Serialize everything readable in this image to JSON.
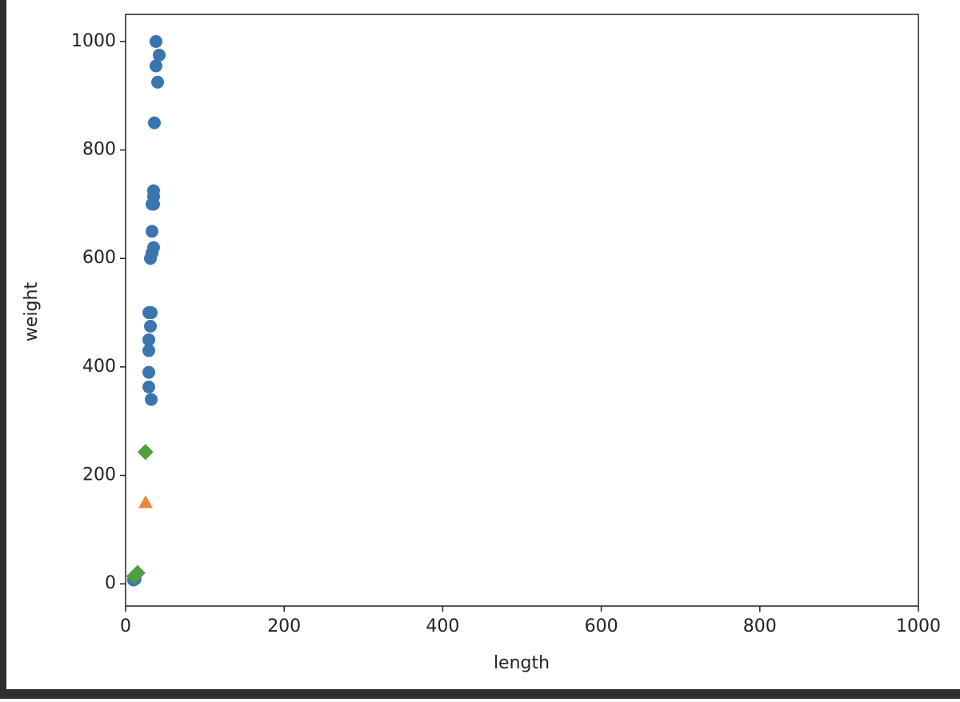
{
  "chart_data": {
    "type": "scatter",
    "x_label": "length",
    "y_label": "weight",
    "xlim": [
      0,
      1000
    ],
    "ylim": [
      -41,
      1050
    ],
    "xticks": [
      0,
      200,
      400,
      600,
      800,
      1000
    ],
    "yticks": [
      0,
      200,
      400,
      600,
      800,
      1000
    ],
    "series": [
      {
        "color": "#3a75b0",
        "marker": "circle",
        "x": [
          38.3,
          42.4,
          38.3,
          40.4,
          36.3,
          35.3,
          35.3,
          35.3,
          33.3,
          33.3,
          35.3,
          33.3,
          31.3,
          32.3,
          29.3,
          31.3,
          29.3,
          29.3,
          29.3,
          29.3,
          32.3,
          10,
          12
        ],
        "values": [
          1000,
          975,
          955,
          925,
          850,
          725,
          714,
          700,
          700,
          650,
          620,
          610,
          600,
          500,
          500,
          475,
          450,
          430,
          390,
          363,
          340,
          7,
          9
        ]
      },
      {
        "color": "#ef8636",
        "marker": "triangle",
        "x": [
          25.2
        ],
        "values": [
          150
        ]
      },
      {
        "color": "#519e3e",
        "marker": "diamond",
        "x": [
          25,
          15,
          11
        ],
        "values": [
          243,
          20,
          14
        ]
      }
    ]
  }
}
